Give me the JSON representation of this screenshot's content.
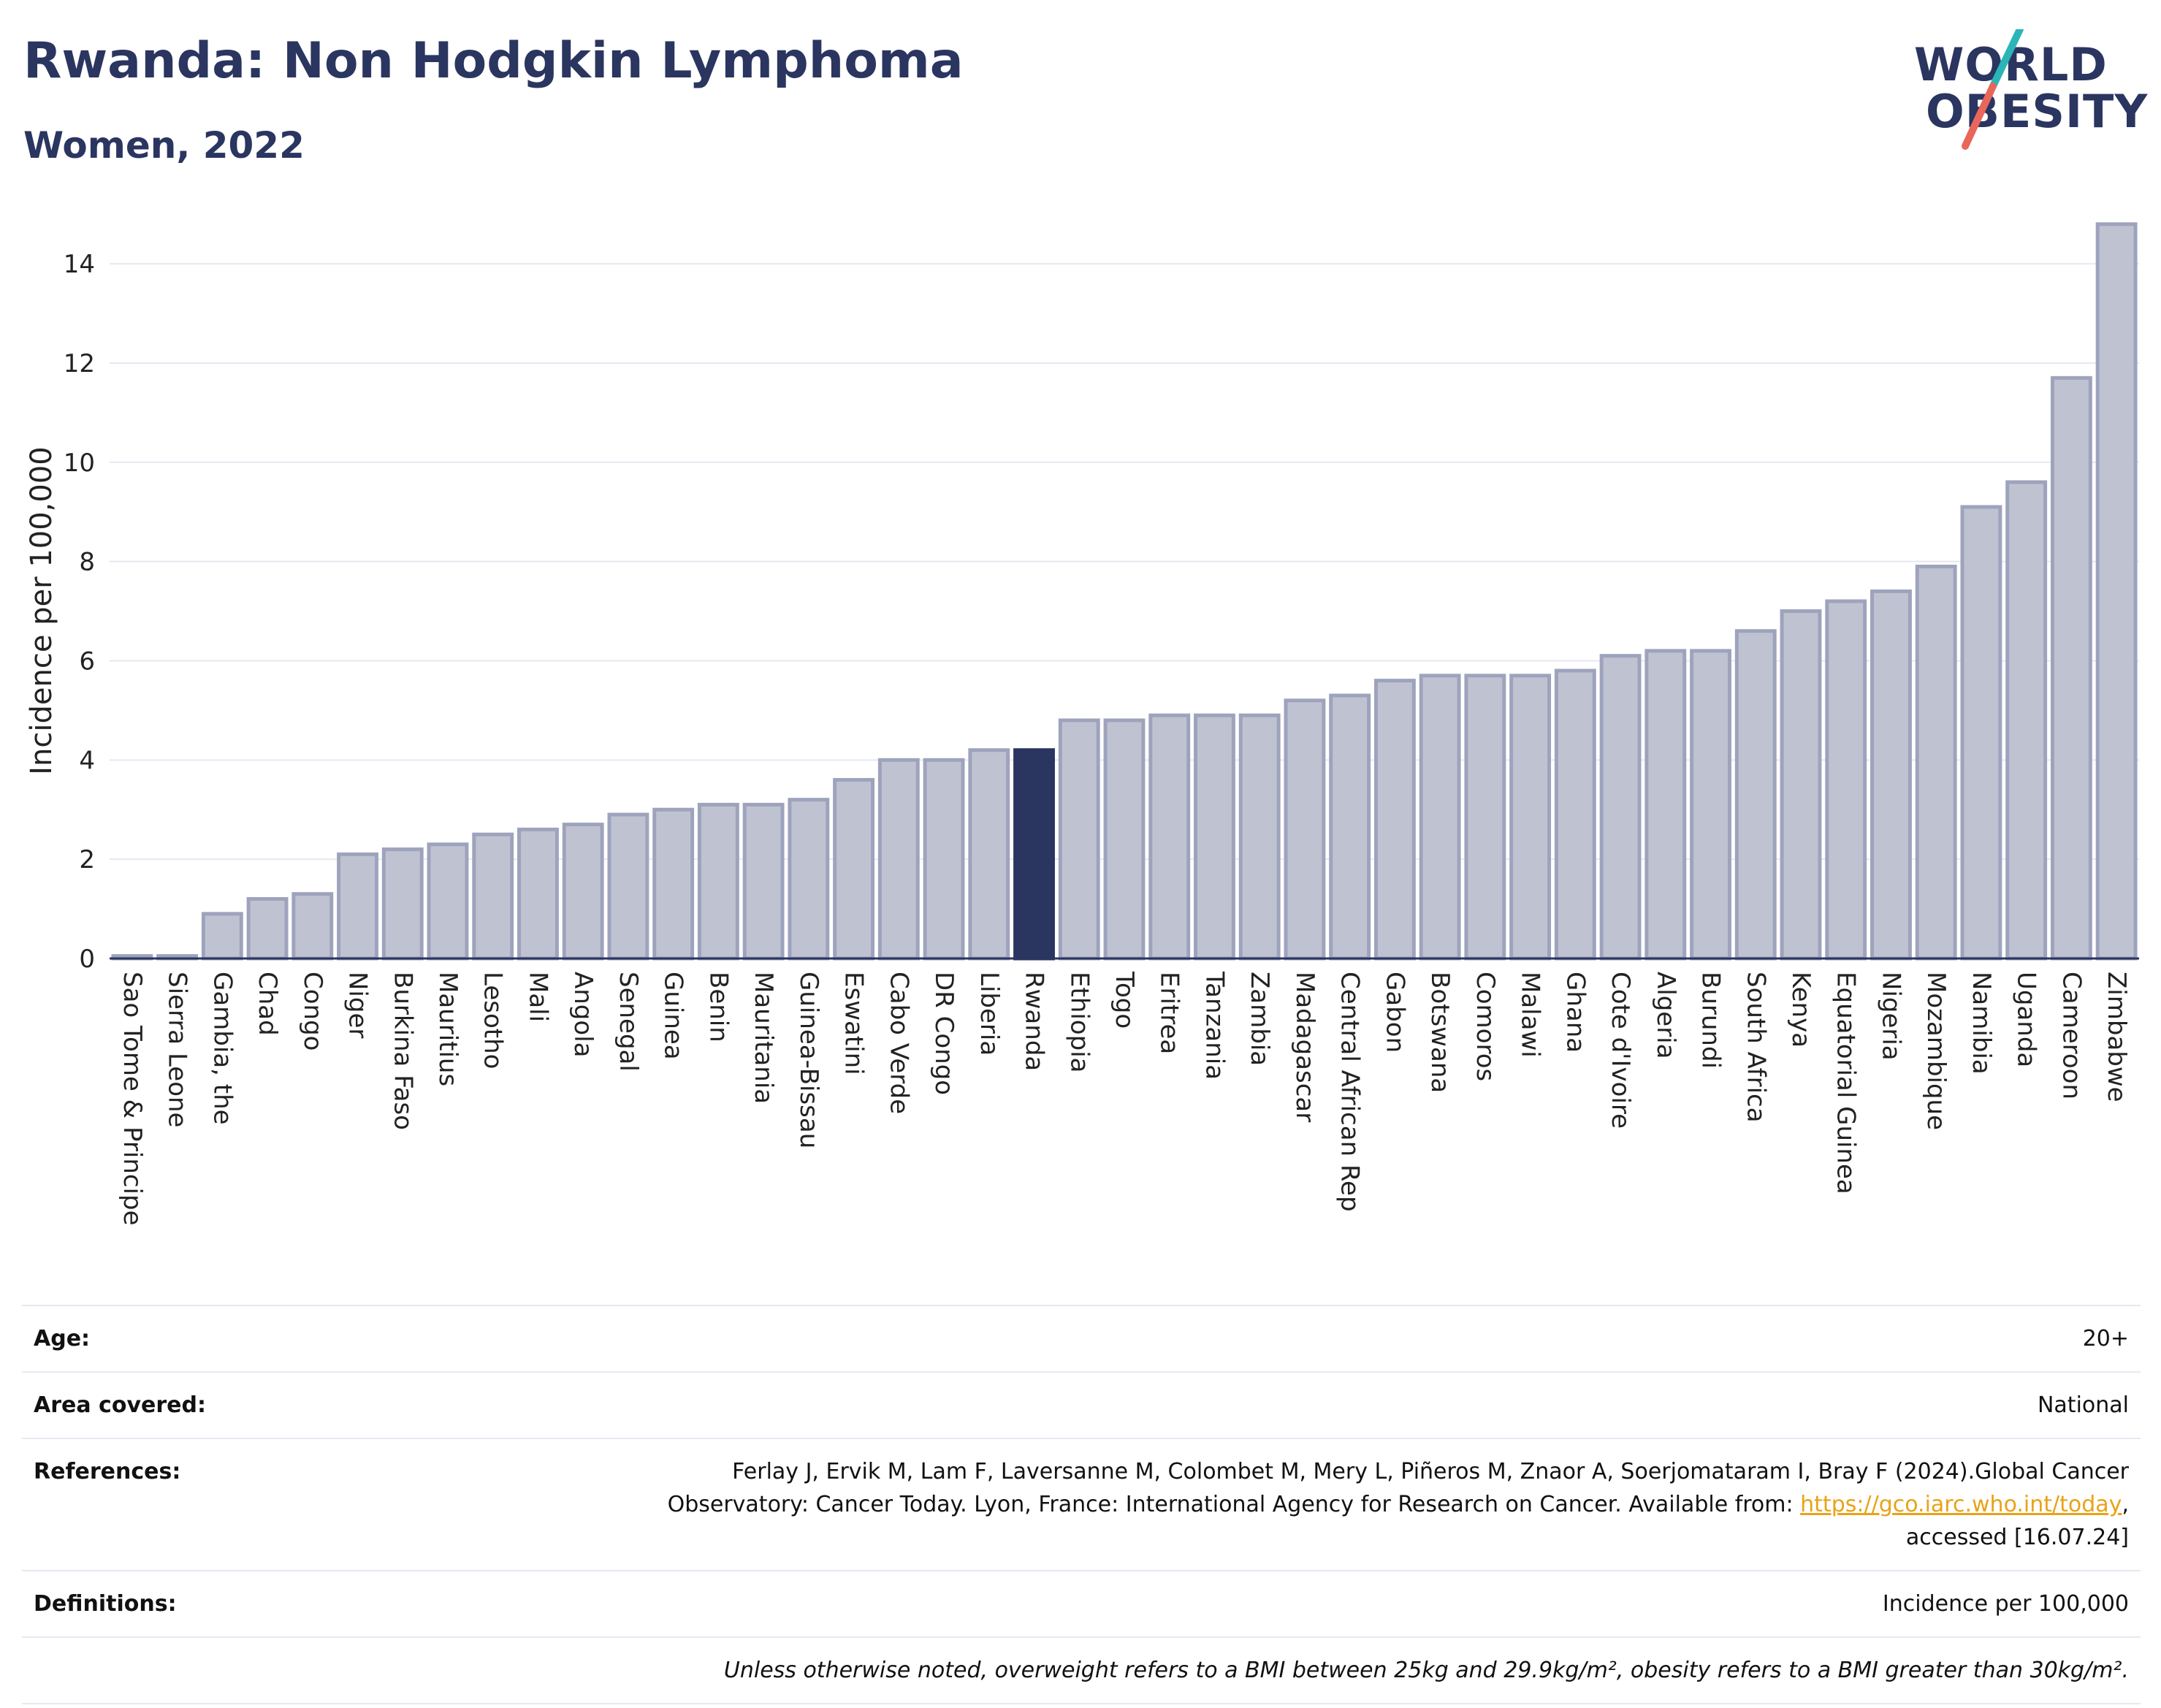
{
  "header": {
    "title": "Rwanda: Non Hodgkin Lymphoma",
    "subtitle": "Women, 2022"
  },
  "logo": {
    "line1": "WORLD",
    "line2": "OBESITY",
    "colors": {
      "text": "#2a3560",
      "slash_teal": "#2bb5b8",
      "slash_coral": "#e8675a"
    }
  },
  "colors": {
    "bar_fill": "#bfc3d1",
    "bar_stroke": "#9ea3bd",
    "highlight": "#2a3560",
    "grid": "#e6e8f0",
    "axis": "#2a3560"
  },
  "chart_data": {
    "type": "bar",
    "ylabel": "Incidence per 100,000",
    "ylim": [
      0,
      14.9
    ],
    "yticks": [
      0,
      2,
      4,
      6,
      8,
      10,
      12,
      14
    ],
    "grid": true,
    "highlight_category": "Rwanda",
    "categories": [
      "Sao Tome & Principe",
      "Sierra Leone",
      "Gambia, the",
      "Chad",
      "Congo",
      "Niger",
      "Burkina Faso",
      "Mauritius",
      "Lesotho",
      "Mali",
      "Angola",
      "Senegal",
      "Guinea",
      "Benin",
      "Mauritania",
      "Guinea-Bissau",
      "Eswatini",
      "Cabo Verde",
      "DR Congo",
      "Liberia",
      "Rwanda",
      "Ethiopia",
      "Togo",
      "Eritrea",
      "Tanzania",
      "Zambia",
      "Madagascar",
      "Central African Rep",
      "Gabon",
      "Botswana",
      "Comoros",
      "Malawi",
      "Ghana",
      "Cote d'Ivoire",
      "Algeria",
      "Burundi",
      "South Africa",
      "Kenya",
      "Equatorial Guinea",
      "Nigeria",
      "Mozambique",
      "Namibia",
      "Uganda",
      "Cameroon",
      "Zimbabwe"
    ],
    "values": [
      0.05,
      0.05,
      0.9,
      1.2,
      1.3,
      2.1,
      2.2,
      2.3,
      2.5,
      2.6,
      2.7,
      2.9,
      3.0,
      3.1,
      3.1,
      3.2,
      3.6,
      4.0,
      4.0,
      4.2,
      4.2,
      4.8,
      4.8,
      4.9,
      4.9,
      4.9,
      5.2,
      5.3,
      5.6,
      5.7,
      5.7,
      5.7,
      5.8,
      6.1,
      6.2,
      6.2,
      6.6,
      7.0,
      7.2,
      7.4,
      7.9,
      9.1,
      9.6,
      11.7,
      14.8
    ]
  },
  "info": {
    "age_label": "Age:",
    "age_value": "20+",
    "area_label": "Area covered:",
    "area_value": "National",
    "references_label": "References:",
    "references_line1": "Ferlay J, Ervik M, Lam F, Laversanne M, Colombet M, Mery L, Piñeros M, Znaor A, Soerjomataram I, Bray F (2024).Global Cancer",
    "references_line2": "Observatory: Cancer Today. Lyon, France: International Agency for Research on Cancer. Available from: ",
    "references_link": "https://gco.iarc.who.int/today",
    "references_link_suffix": ",",
    "references_line3": "accessed [16.07.24]",
    "definitions_label": "Definitions:",
    "definitions_value": "Incidence per 100,000",
    "note": "Unless otherwise noted, overweight refers to a BMI between 25kg and 29.9kg/m², obesity refers to a BMI greater than 30kg/m²."
  }
}
